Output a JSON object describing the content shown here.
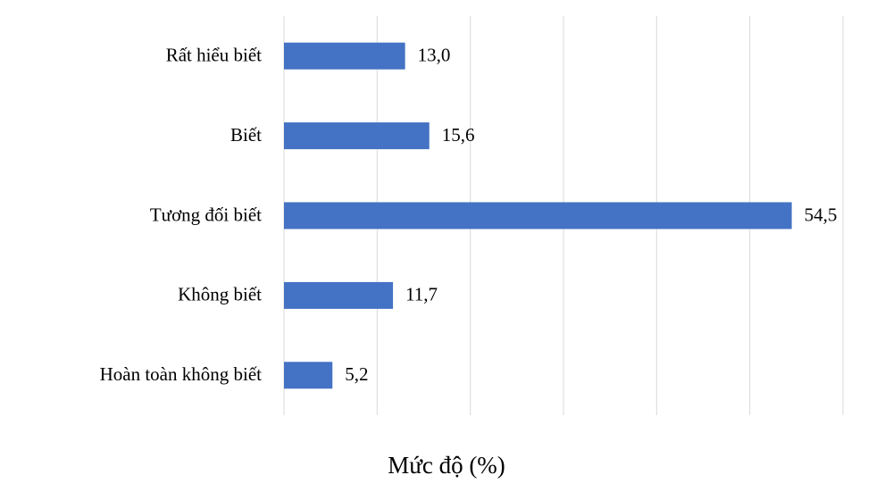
{
  "chart_data": {
    "type": "hbar",
    "x_label": "Mức độ (%)",
    "categories": [
      "Rất hiểu biết",
      "Biết",
      "Tương đối biết",
      "Không biết",
      "Hoàn toàn không biết"
    ],
    "values": [
      13.0,
      15.6,
      54.5,
      11.7,
      5.2
    ],
    "value_labels": [
      "13,0",
      "15,6",
      "54,5",
      "11,7",
      "5,2"
    ],
    "color": "#4472c4",
    "xlim": [
      0,
      60
    ],
    "xticks": [
      0,
      10,
      20,
      30,
      40,
      50,
      60
    ],
    "grid": true
  }
}
